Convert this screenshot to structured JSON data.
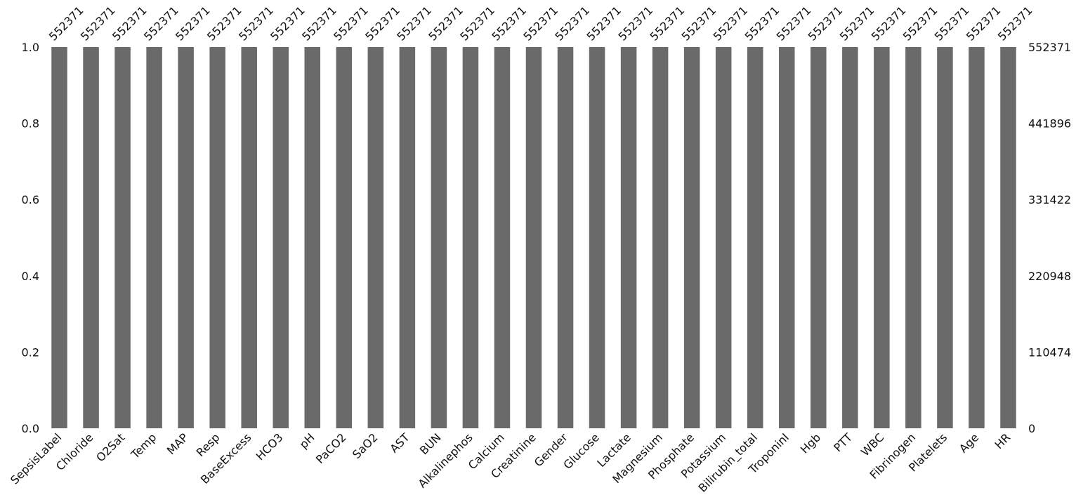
{
  "chart_data": {
    "type": "bar",
    "categories": [
      "SepsisLabel",
      "Chloride",
      "O2Sat",
      "Temp",
      "MAP",
      "Resp",
      "BaseExcess",
      "HCO3",
      "pH",
      "PaCO2",
      "SaO2",
      "AST",
      "BUN",
      "Alkalinephos",
      "Calcium",
      "Creatinine",
      "Gender",
      "Glucose",
      "Lactate",
      "Magnesium",
      "Phosphate",
      "Potassium",
      "Bilirubin_total",
      "TroponinI",
      "Hgb",
      "PTT",
      "WBC",
      "Fibrinogen",
      "Platelets",
      "Age",
      "HR"
    ],
    "values": [
      1.0,
      1.0,
      1.0,
      1.0,
      1.0,
      1.0,
      1.0,
      1.0,
      1.0,
      1.0,
      1.0,
      1.0,
      1.0,
      1.0,
      1.0,
      1.0,
      1.0,
      1.0,
      1.0,
      1.0,
      1.0,
      1.0,
      1.0,
      1.0,
      1.0,
      1.0,
      1.0,
      1.0,
      1.0,
      1.0,
      1.0
    ],
    "counts": [
      "552371",
      "552371",
      "552371",
      "552371",
      "552371",
      "552371",
      "552371",
      "552371",
      "552371",
      "552371",
      "552371",
      "552371",
      "552371",
      "552371",
      "552371",
      "552371",
      "552371",
      "552371",
      "552371",
      "552371",
      "552371",
      "552371",
      "552371",
      "552371",
      "552371",
      "552371",
      "552371",
      "552371",
      "552371",
      "552371",
      "552371"
    ],
    "ylim": [
      0,
      1.0
    ],
    "yticks_left": [
      "0.0",
      "0.2",
      "0.4",
      "0.6",
      "0.8",
      "1.0"
    ],
    "yticks_right": [
      "0",
      "110474",
      "220948",
      "331422",
      "441896",
      "552371"
    ],
    "color": "#6a6a6a",
    "title": "",
    "xlabel": "",
    "ylabel": "",
    "grid": false
  }
}
